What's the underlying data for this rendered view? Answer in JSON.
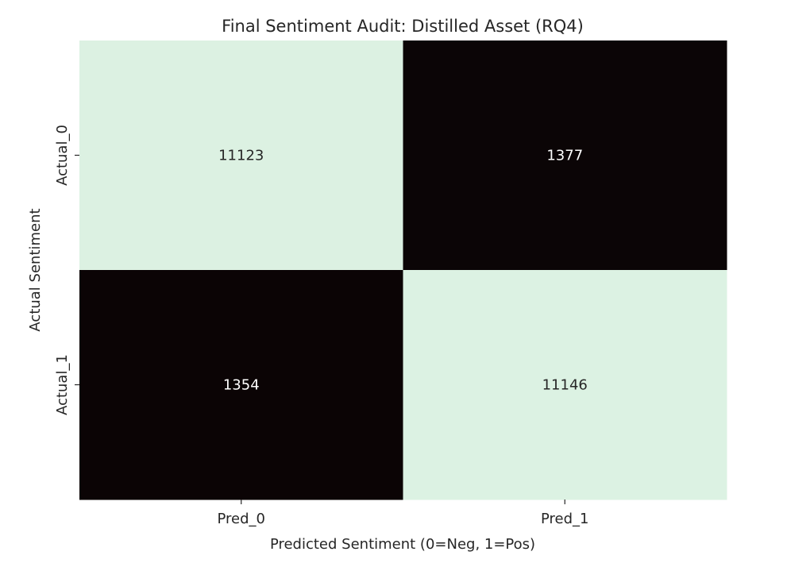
{
  "chart_data": {
    "type": "heatmap",
    "title": "Final Sentiment Audit: Distilled Asset (RQ4)",
    "xlabel": "Predicted Sentiment (0=Neg, 1=Pos)",
    "ylabel": "Actual Sentiment",
    "x_categories": [
      "Pred_0",
      "Pred_1"
    ],
    "y_categories": [
      "Actual_0",
      "Actual_1"
    ],
    "values": [
      [
        11123,
        1377
      ],
      [
        1354,
        11146
      ]
    ],
    "colors": {
      "high": "#dcf2e3",
      "low": "#0b0405",
      "text_on_light": "#262626",
      "text_on_dark": "#ffffff"
    },
    "colorbar": false
  }
}
